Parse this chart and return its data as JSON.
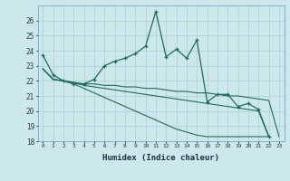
{
  "xlabel": "Humidex (Indice chaleur)",
  "background_color": "#cde8ec",
  "grid_color": "#aacdd4",
  "line_color": "#1e6b5e",
  "xlim": [
    -0.5,
    23.5
  ],
  "ylim": [
    18,
    27
  ],
  "yticks": [
    18,
    19,
    20,
    21,
    22,
    23,
    24,
    25,
    26
  ],
  "xticks": [
    0,
    1,
    2,
    3,
    4,
    5,
    6,
    7,
    8,
    9,
    10,
    11,
    12,
    13,
    14,
    15,
    16,
    17,
    18,
    19,
    20,
    21,
    22,
    23
  ],
  "line1_x": [
    0,
    1,
    2,
    3,
    4,
    5,
    6,
    7,
    8,
    9,
    10,
    11,
    12,
    13,
    14,
    15,
    16,
    17,
    18,
    19,
    20,
    21,
    22
  ],
  "line1_y": [
    23.7,
    22.4,
    22.0,
    21.8,
    21.8,
    22.1,
    23.0,
    23.3,
    23.5,
    23.8,
    24.3,
    26.6,
    23.6,
    24.1,
    23.5,
    24.7,
    20.6,
    21.1,
    21.1,
    20.3,
    20.5,
    20.1,
    18.3
  ],
  "line2_x": [
    0,
    1,
    2,
    3,
    4,
    5,
    6,
    7,
    8,
    9,
    10,
    11,
    12,
    13,
    14,
    15,
    16,
    17,
    18,
    19,
    20,
    21,
    22,
    23
  ],
  "line2_y": [
    22.8,
    22.1,
    22.0,
    21.9,
    21.8,
    21.8,
    21.7,
    21.7,
    21.6,
    21.6,
    21.5,
    21.5,
    21.4,
    21.3,
    21.3,
    21.2,
    21.2,
    21.1,
    21.0,
    21.0,
    20.9,
    20.8,
    20.7,
    18.3
  ],
  "line3_x": [
    0,
    1,
    2,
    3,
    4,
    5,
    6,
    7,
    8,
    9,
    10,
    11,
    12,
    13,
    14,
    15,
    16,
    17,
    18,
    19,
    20,
    21,
    22
  ],
  "line3_y": [
    22.8,
    22.1,
    22.0,
    21.8,
    21.5,
    21.2,
    20.9,
    20.6,
    20.3,
    20.0,
    19.7,
    19.4,
    19.1,
    18.8,
    18.6,
    18.4,
    18.3,
    18.3,
    18.3,
    18.3,
    18.3,
    18.3,
    18.3
  ],
  "line4_x": [
    0,
    1,
    2,
    3,
    4,
    5,
    6,
    7,
    8,
    9,
    10,
    11,
    12,
    13,
    14,
    15,
    16,
    17,
    18,
    19,
    20,
    21,
    22
  ],
  "line4_y": [
    22.8,
    22.1,
    22.0,
    21.9,
    21.7,
    21.6,
    21.5,
    21.4,
    21.3,
    21.2,
    21.1,
    21.0,
    20.9,
    20.8,
    20.7,
    20.6,
    20.5,
    20.4,
    20.3,
    20.2,
    20.1,
    20.0,
    18.3
  ]
}
